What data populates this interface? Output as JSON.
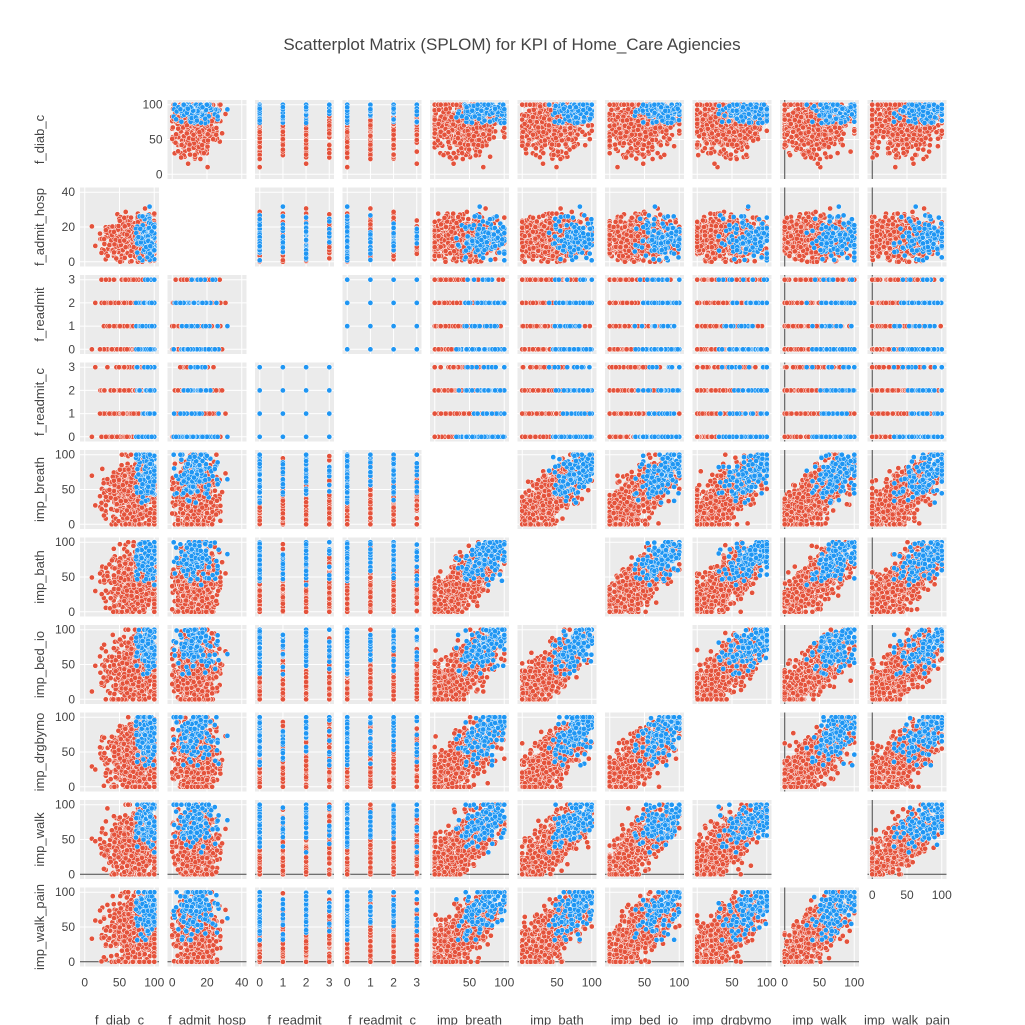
{
  "chart_data": {
    "type": "scatter",
    "title": "Scatterplot Matrix (SPLOM) for KPI of Home_Care Agiencies",
    "dimensions": [
      {
        "label": "f_diab_c",
        "range": [
          0,
          100
        ],
        "ticks": [
          0,
          50,
          100
        ],
        "xticks": [
          0,
          50,
          100
        ]
      },
      {
        "label": "f_admit_hosp",
        "range": [
          0,
          40
        ],
        "ticks": [
          0,
          20,
          40
        ],
        "xticks": [
          0,
          20,
          40
        ]
      },
      {
        "label": "f_readmit",
        "range": [
          0,
          3
        ],
        "ticks": [
          0,
          1,
          2,
          3
        ],
        "xticks": [
          0,
          1,
          2,
          3
        ]
      },
      {
        "label": "f_readmit_c",
        "range": [
          0,
          3
        ],
        "ticks": [
          0,
          1,
          2,
          3
        ],
        "xticks": [
          0,
          1,
          2,
          3
        ]
      },
      {
        "label": "imp_breath",
        "range": [
          0,
          100
        ],
        "ticks": [
          0,
          50,
          100
        ],
        "xticks": [
          50,
          100
        ]
      },
      {
        "label": "imp_bath",
        "range": [
          0,
          100
        ],
        "ticks": [
          0,
          50,
          100
        ],
        "xticks": [
          50,
          100
        ]
      },
      {
        "label": "imp_bed_io",
        "range": [
          0,
          100
        ],
        "ticks": [
          0,
          50,
          100
        ],
        "xticks": [
          50,
          100
        ]
      },
      {
        "label": "imp_drgbymo",
        "range": [
          0,
          100
        ],
        "ticks": [
          0,
          50,
          100
        ],
        "xticks": [
          50,
          100
        ]
      },
      {
        "label": "imp_walk",
        "range": [
          0,
          100
        ],
        "ticks": [
          0,
          50,
          100
        ],
        "xticks": [
          0,
          50,
          100
        ]
      },
      {
        "label": "imp_walk_pain",
        "range": [
          0,
          100
        ],
        "ticks": [
          0,
          50,
          100
        ],
        "xticks": [
          0,
          50,
          100
        ]
      }
    ],
    "series": [
      {
        "color": "#E4523B",
        "count": 700
      },
      {
        "color": "#1F96F3",
        "count": 130
      }
    ],
    "diagonal_visible": false,
    "upper_triangle_visible": true,
    "plot_bgcolor": "#EBEBEB",
    "grid": true
  }
}
